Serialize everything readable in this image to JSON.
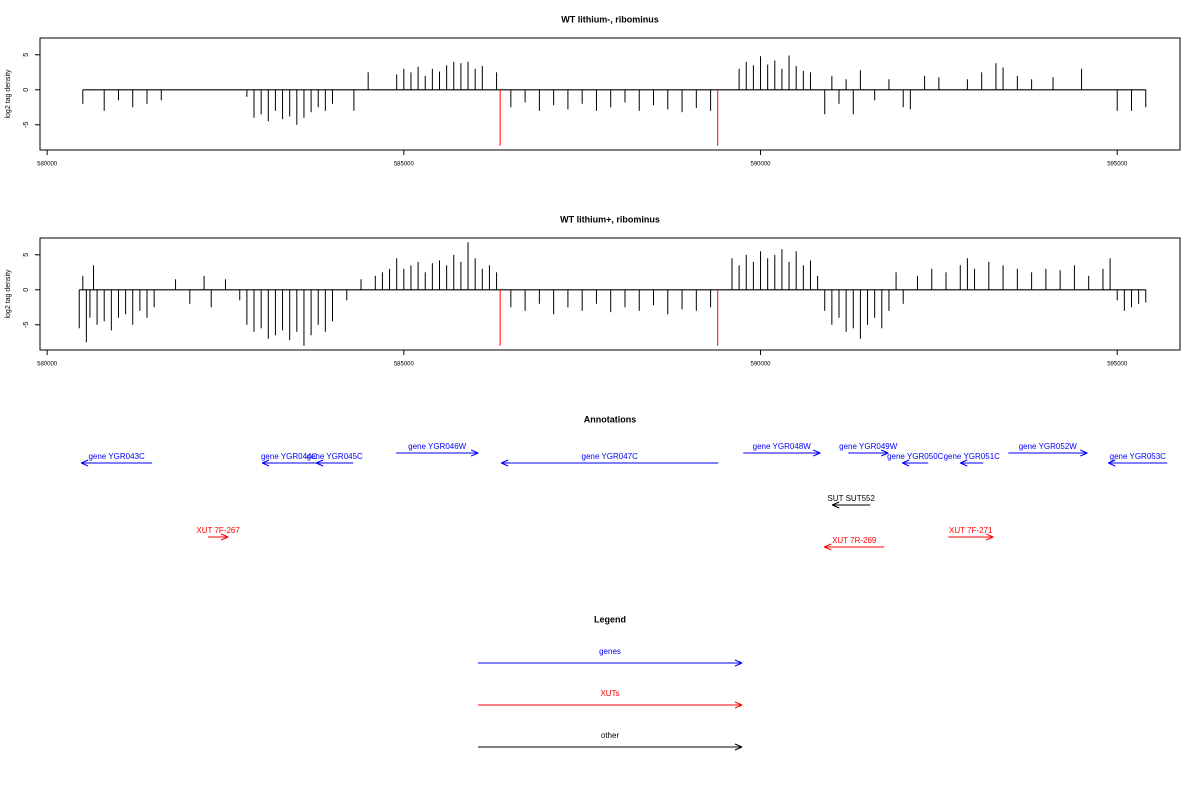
{
  "chart_data": [
    {
      "type": "bar",
      "title": "WT lithium-, ribominus",
      "y_label": "log2 tag density",
      "xlim": [
        579900,
        595880
      ],
      "ylim": [
        -8.6,
        7.4
      ],
      "xticks": [
        580000,
        585000,
        590000,
        595000
      ],
      "yticks": [
        -5,
        0,
        5
      ],
      "color": "#000000",
      "x": [
        580500,
        580800,
        581000,
        581200,
        581400,
        581600,
        582800,
        582900,
        583000,
        583100,
        583200,
        583300,
        583400,
        583500,
        583600,
        583700,
        583800,
        583900,
        584000,
        584300,
        584500,
        584900,
        585000,
        585100,
        585200,
        585300,
        585400,
        585500,
        585600,
        585700,
        585800,
        585900,
        586000,
        586100,
        586300,
        586500,
        586700,
        586900,
        587100,
        587300,
        587500,
        587700,
        587900,
        588100,
        588300,
        588500,
        588700,
        588900,
        589100,
        589300,
        589700,
        589800,
        589900,
        590000,
        590100,
        590200,
        590300,
        590400,
        590500,
        590600,
        590700,
        590900,
        591000,
        591100,
        591200,
        591300,
        591400,
        591600,
        591800,
        592000,
        592100,
        592300,
        592500,
        592900,
        593100,
        593300,
        593400,
        593600,
        593800,
        594100,
        594500,
        595000,
        595200,
        595400
      ],
      "values": [
        -2,
        -3,
        -1.5,
        -2.5,
        -2,
        -1.5,
        -1,
        -4,
        -3.5,
        -4.5,
        -3,
        -4.2,
        -3.8,
        -5,
        -4,
        -3.2,
        -2.5,
        -3,
        -2,
        -3,
        2.5,
        2.2,
        3,
        2.5,
        3.3,
        2,
        3,
        2.6,
        3.5,
        4,
        3.8,
        4,
        3,
        3.4,
        2.5,
        -2.5,
        -1.8,
        -3,
        -2.2,
        -2.8,
        -2,
        -3,
        -2.5,
        -1.8,
        -3,
        -2.2,
        -2.8,
        -3.2,
        -2.6,
        -3,
        3,
        4,
        3.5,
        4.8,
        3.6,
        4.2,
        3,
        4.9,
        3.4,
        2.7,
        2.5,
        -3.5,
        2,
        -2,
        1.5,
        -3.5,
        2.8,
        -1.5,
        1.5,
        -2.5,
        -2.8,
        2,
        1.8,
        1.5,
        2.5,
        3.8,
        3.2,
        2,
        1.5,
        1.8,
        3,
        -3,
        -3,
        -2.5
      ],
      "marker_x": [
        586350,
        589400
      ],
      "marker_values": [
        -8,
        -8
      ],
      "marker_color": "#ff0000"
    },
    {
      "type": "bar",
      "title": "WT lithium+, ribominus",
      "y_label": "log2 tag density",
      "xlim": [
        579900,
        595880
      ],
      "ylim": [
        -8.6,
        7.4
      ],
      "xticks": [
        580000,
        585000,
        590000,
        595000
      ],
      "yticks": [
        -5,
        0,
        5
      ],
      "color": "#000000",
      "x": [
        580450,
        580500,
        580550,
        580600,
        580650,
        580700,
        580800,
        580900,
        581000,
        581100,
        581200,
        581300,
        581400,
        581500,
        581800,
        582000,
        582200,
        582300,
        582500,
        582700,
        582800,
        582900,
        583000,
        583100,
        583200,
        583300,
        583400,
        583500,
        583600,
        583700,
        583800,
        583900,
        584000,
        584200,
        584400,
        584600,
        584700,
        584800,
        584900,
        585000,
        585100,
        585200,
        585300,
        585400,
        585500,
        585600,
        585700,
        585800,
        585900,
        586000,
        586100,
        586200,
        586300,
        586500,
        586700,
        586900,
        587100,
        587300,
        587500,
        587700,
        587900,
        588100,
        588300,
        588500,
        588700,
        588900,
        589100,
        589300,
        589600,
        589700,
        589800,
        589900,
        590000,
        590100,
        590200,
        590300,
        590400,
        590500,
        590600,
        590700,
        590800,
        590900,
        591000,
        591100,
        591200,
        591300,
        591400,
        591500,
        591600,
        591700,
        591800,
        591900,
        592000,
        592200,
        592400,
        592600,
        592800,
        592900,
        593000,
        593200,
        593400,
        593600,
        593800,
        594000,
        594200,
        594400,
        594600,
        594800,
        594900,
        595000,
        595100,
        595200,
        595300,
        595400
      ],
      "values": [
        -5.5,
        2,
        -7.5,
        -4,
        3.5,
        -5,
        -4.5,
        -5.8,
        -4,
        -3.5,
        -5,
        -3,
        -4,
        -2.5,
        1.5,
        -2,
        2,
        -2.5,
        1.5,
        -1.5,
        -5,
        -6,
        -5.5,
        -7,
        -6.5,
        -5.8,
        -7.2,
        -6,
        -8,
        -6.5,
        -5,
        -6,
        -4.5,
        -1.5,
        1.5,
        2,
        2.5,
        3,
        4.5,
        3,
        3.5,
        4,
        2.5,
        3.8,
        4.2,
        3.5,
        5,
        4,
        6.8,
        4.5,
        3,
        3.5,
        2.5,
        -2.5,
        -3,
        -2,
        -3.5,
        -2.5,
        -3,
        -2,
        -3.2,
        -2.5,
        -3,
        -2.2,
        -3.5,
        -2.8,
        -3,
        -2.5,
        4.5,
        3.5,
        5,
        4,
        5.5,
        4.5,
        5,
        5.8,
        4,
        5.5,
        3.5,
        4.2,
        2,
        -3,
        -5,
        -4,
        -6,
        -5.5,
        -7,
        -5,
        -4,
        -5.5,
        -3,
        2.5,
        -2,
        2,
        3,
        2.5,
        3.5,
        4.5,
        3,
        4,
        3.5,
        3,
        2.5,
        3,
        2.8,
        3.5,
        2,
        3,
        4.5,
        -1.5,
        -3,
        -2.5,
        -2,
        -1.8
      ],
      "marker_x": [
        586350,
        589400
      ],
      "marker_values": [
        -8,
        -8
      ],
      "marker_color": "#ff0000"
    }
  ],
  "annotations": {
    "title": "Annotations",
    "features": [
      {
        "label": "gene YGR043C",
        "start": 580477,
        "end": 581472,
        "strand": "-",
        "color": "#0000ff"
      },
      {
        "label": "gene YGR044C",
        "start": 583014,
        "end": 583771,
        "strand": "-",
        "color": "#0000ff"
      },
      {
        "label": "gene YGR045C",
        "start": 583771,
        "end": 584290,
        "strand": "-",
        "color": "#0000ff"
      },
      {
        "label": "gene YGR046W",
        "start": 584893,
        "end": 586042,
        "strand": "+",
        "color": "#0000ff"
      },
      {
        "label": "gene YGR047C",
        "start": 586365,
        "end": 589407,
        "strand": "-",
        "color": "#0000ff"
      },
      {
        "label": "gene YGR048W",
        "start": 589757,
        "end": 590837,
        "strand": "+",
        "color": "#0000ff"
      },
      {
        "label": "gene YGR049W",
        "start": 591229,
        "end": 591790,
        "strand": "+",
        "color": "#0000ff"
      },
      {
        "label": "gene YGR050C",
        "start": 591987,
        "end": 592351,
        "strand": "-",
        "color": "#0000ff"
      },
      {
        "label": "gene YGR051C",
        "start": 592800,
        "end": 593122,
        "strand": "-",
        "color": "#0000ff"
      },
      {
        "label": "gene YGR052W",
        "start": 593473,
        "end": 594580,
        "strand": "+",
        "color": "#0000ff"
      },
      {
        "label": "gene YGR053C",
        "start": 594875,
        "end": 595702,
        "strand": "-",
        "color": "#0000ff"
      },
      {
        "label": "SUT SUT552",
        "start": 591005,
        "end": 591538,
        "strand": "-",
        "color": "#000000"
      },
      {
        "label": "XUT 7F-267",
        "start": 582257,
        "end": 582537,
        "strand": "+",
        "color": "#ff0000"
      },
      {
        "label": "XUT 7R-269",
        "start": 590893,
        "end": 591734,
        "strand": "-",
        "color": "#ff0000"
      },
      {
        "label": "XUT 7F-271",
        "start": 592632,
        "end": 593262,
        "strand": "+",
        "color": "#ff0000"
      }
    ]
  },
  "legend": {
    "title": "Legend",
    "entries": [
      {
        "label": "genes",
        "color": "#0000ff"
      },
      {
        "label": "XUTs",
        "color": "#ff0000"
      },
      {
        "label": "other",
        "color": "#000000"
      }
    ]
  }
}
